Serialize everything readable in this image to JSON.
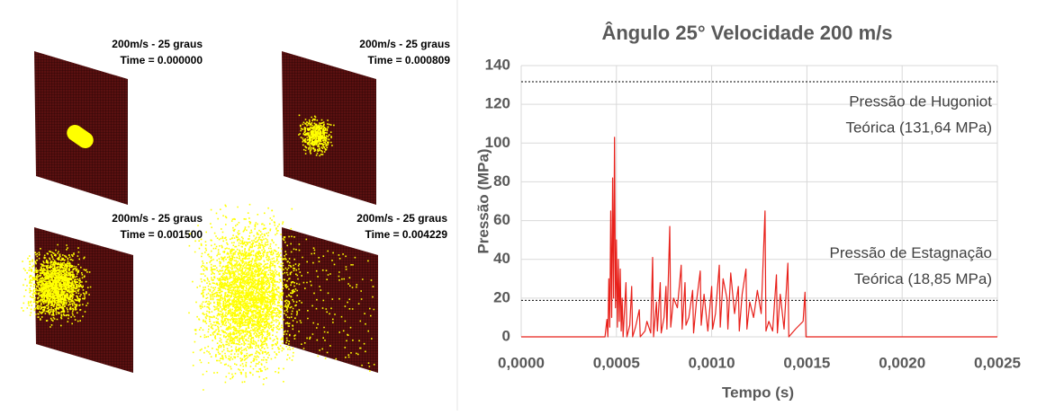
{
  "simulation_frames": [
    {
      "title": "200m/s - 25 graus",
      "time": "Time = 0.000000"
    },
    {
      "title": "200m/s - 25 graus",
      "time": "Time = 0.000809"
    },
    {
      "title": "200m/s - 25 graus",
      "time": "Time = 0.001500"
    },
    {
      "title": "200m/s - 25 graus",
      "time": "Time = 0.004229"
    }
  ],
  "chart_data": {
    "type": "line",
    "title": "Ângulo 25° Velocidade 200 m/s",
    "x_label": "Tempo (s)",
    "y_label": "Pressão (MPa)",
    "xlim": [
      0,
      0.0025
    ],
    "xticks": [
      {
        "value": 0,
        "label": "0,0000"
      },
      {
        "value": 0.0005,
        "label": "0,0005"
      },
      {
        "value": 0.001,
        "label": "0,0010"
      },
      {
        "value": 0.0015,
        "label": "0,0015"
      },
      {
        "value": 0.002,
        "label": "0,0020"
      },
      {
        "value": 0.0025,
        "label": "0,0025"
      }
    ],
    "ylim": [
      0,
      140
    ],
    "yticks": [
      0,
      20,
      40,
      60,
      80,
      100,
      120,
      140
    ],
    "grid": true,
    "reference_lines": [
      {
        "value": 131.64,
        "label": [
          "Pressão de Hugoniot",
          "Teórica (131,64 MPa)"
        ]
      },
      {
        "value": 18.85,
        "label": [
          "Pressão de Estagnação",
          "Teórica (18,85 MPa)"
        ]
      }
    ],
    "x": [
      0,
      0.00044,
      0.00045,
      0.000455,
      0.00046,
      0.000465,
      0.00047,
      0.000475,
      0.00048,
      0.000485,
      0.00049,
      0.000495,
      0.0005,
      0.000505,
      0.00051,
      0.000515,
      0.00052,
      0.000525,
      0.00053,
      0.000535,
      0.00055,
      0.000555,
      0.00057,
      0.00058,
      0.000585,
      0.0006,
      0.00062,
      0.000625,
      0.00065,
      0.00066,
      0.00068,
      0.00069,
      0.000695,
      0.00071,
      0.000715,
      0.00073,
      0.000735,
      0.00075,
      0.00076,
      0.000765,
      0.00078,
      0.000785,
      0.0008,
      0.00082,
      0.00084,
      0.000845,
      0.00086,
      0.000865,
      0.00088,
      0.0009,
      0.000905,
      0.00092,
      0.00094,
      0.000945,
      0.00096,
      0.00098,
      0.001,
      0.001005,
      0.00102,
      0.00104,
      0.001045,
      0.00106,
      0.00108,
      0.001085,
      0.0011,
      0.00112,
      0.00114,
      0.001145,
      0.00116,
      0.00118,
      0.001185,
      0.0012,
      0.00122,
      0.00124,
      0.00126,
      0.00128,
      0.001285,
      0.0013,
      0.00132,
      0.00134,
      0.001345,
      0.00136,
      0.00138,
      0.0014,
      0.001405,
      0.00144,
      0.00148,
      0.00149,
      0.001495,
      0.0025
    ],
    "series": [
      {
        "color": "#e8211b",
        "values": [
          0,
          0,
          9,
          0,
          30,
          5,
          65,
          10,
          82,
          20,
          103,
          15,
          50,
          5,
          40,
          8,
          35,
          3,
          20,
          0,
          28,
          0,
          6,
          26,
          0,
          5,
          14,
          0,
          3,
          8,
          2,
          41,
          0,
          18,
          3,
          28,
          2,
          10,
          26,
          4,
          57,
          5,
          20,
          15,
          37,
          4,
          28,
          6,
          10,
          24,
          2,
          18,
          34,
          6,
          22,
          3,
          26,
          4,
          12,
          37,
          5,
          30,
          20,
          4,
          33,
          12,
          26,
          3,
          22,
          35,
          4,
          18,
          10,
          24,
          12,
          65,
          3,
          8,
          3,
          32,
          2,
          22,
          4,
          38,
          0,
          4,
          8,
          23,
          0,
          0
        ]
      }
    ]
  }
}
